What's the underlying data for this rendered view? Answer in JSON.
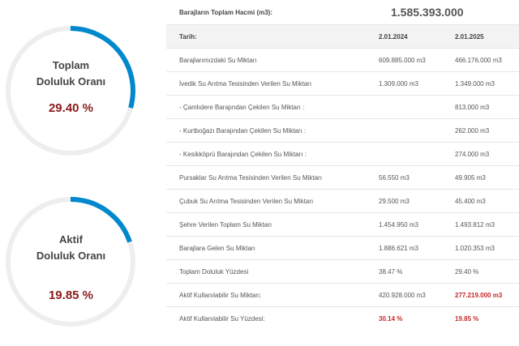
{
  "gauges": [
    {
      "line1": "Toplam",
      "line2": "Doluluk Oranı",
      "percent_text": "29.40 %",
      "value": 29.4
    },
    {
      "line1": "Aktif",
      "line2": "Doluluk Oranı",
      "percent_text": "19.85 %",
      "value": 19.85
    }
  ],
  "colors": {
    "gauge_fill": "#0088cc",
    "gauge_track": "#eeeeee",
    "percent": "#8b1a1a",
    "highlight": "#c62828"
  },
  "table": {
    "volume_label": "Barajların Toplam Hacmi (m3):",
    "volume_value": "1.585.393.000",
    "header": {
      "label": "Tarih:",
      "date1": "2.01.2024",
      "date2": "2.01.2025"
    },
    "rows": [
      {
        "label": "Barajlarımızdaki Su Miktarı",
        "v1": "609.885.000 m3",
        "v2": "466.176.000 m3"
      },
      {
        "label": "İvedik Su Arıtma Tesisinden Verilen Su Miktarı",
        "v1": "1.309.000 m3",
        "v2": "1.349.000 m3"
      },
      {
        "label": "- Çamlıdere Barajından Çekilen Su Miktarı :",
        "v1": "",
        "v2": "813.000 m3"
      },
      {
        "label": "- Kurtboğazı Barajından Çekilen Su Miktarı :",
        "v1": "",
        "v2": "262.000 m3"
      },
      {
        "label": "- Kesikköprü Barajından Çekilen Su Miktarı :",
        "v1": "",
        "v2": "274.000 m3"
      },
      {
        "label": "Pursaklar Su Arıtma Tesisinden Verilen Su Miktarı",
        "v1": "56.550 m3",
        "v2": "49.905 m3"
      },
      {
        "label": "Çubuk Su Arıtma Tesisinden Verilen Su Miktarı",
        "v1": "29.500 m3",
        "v2": "45.400 m3"
      },
      {
        "label": "Şehre Verilen Toplam Su Miktarı",
        "v1": "1.454.950 m3",
        "v2": "1.493.812 m3"
      },
      {
        "label": "Barajlara Gelen Su Miktarı",
        "v1": "1.886.621 m3",
        "v2": "1.020.353 m3"
      },
      {
        "label": "Toplam Doluluk Yüzdesi",
        "v1": "38.47 %",
        "v2": "29.40 %"
      },
      {
        "label": "Aktif Kullanılabilir Su Miktarı:",
        "v1": "420.928.000 m3",
        "v2": "277.219.000 m3"
      },
      {
        "label": "Aktif Kullanılabilir Su Yüzdesi:",
        "v1": "30.14 %",
        "v2": "19.85 %"
      }
    ]
  }
}
